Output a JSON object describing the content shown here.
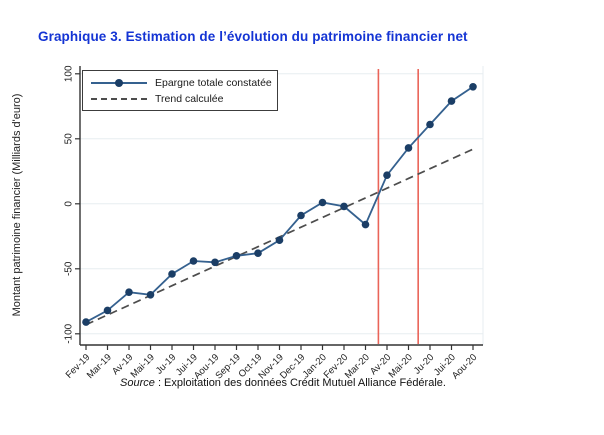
{
  "page": {
    "title": "Graphique 3. Estimation de l’évolution du patrimoine financier net",
    "title_color": "#1434d4",
    "source_italic": "Source",
    "source_text": " : Exploitation des données Crédit Mutuel Alliance Fédérale."
  },
  "chart_data": {
    "type": "line",
    "title": "",
    "ylabel": "Montant patrimoine financier (Milliards d'euro)",
    "xlabel": "",
    "yticks": [
      100,
      50,
      0,
      -50,
      -100
    ],
    "ylim": [
      -108,
      107
    ],
    "grid": true,
    "grid_color": "#e7edf0",
    "axis_color": "#333333",
    "legend_position": "top-left",
    "categories": [
      "Fev-19",
      "Mar-19",
      "Av-19",
      "Mai-19",
      "Ju-19",
      "Jui-19",
      "Aou-19",
      "Sep-19",
      "Oct-19",
      "Nov-19",
      "Dec-19",
      "Jan-20",
      "Fev-20",
      "Mar-20",
      "Av-20",
      "Mai-20",
      "Ju-20",
      "Jui-20",
      "Aou-20"
    ],
    "series": [
      {
        "name": "Epargne totale constatée",
        "style": "solid-with-markers",
        "line_color": "#35618f",
        "marker_color": "#1b3e66",
        "values": [
          -91,
          -82,
          -68,
          -70,
          -54,
          -44,
          -45,
          -40,
          -38,
          -28,
          -9,
          1,
          -2,
          -16,
          22,
          43,
          61,
          79,
          90
        ]
      },
      {
        "name": "Trend calculée",
        "style": "dashed",
        "line_color": "#4d4d4d",
        "values": [
          -93,
          -85.5,
          -78,
          -70.5,
          -63,
          -55.5,
          -48,
          -40.5,
          -33,
          -25.5,
          -18,
          -10.5,
          -3,
          4.5,
          12,
          19.5,
          27,
          34.5,
          42
        ]
      }
    ],
    "vlines": {
      "color": "#ea6459",
      "at_index": [
        13.6,
        15.45
      ]
    }
  }
}
